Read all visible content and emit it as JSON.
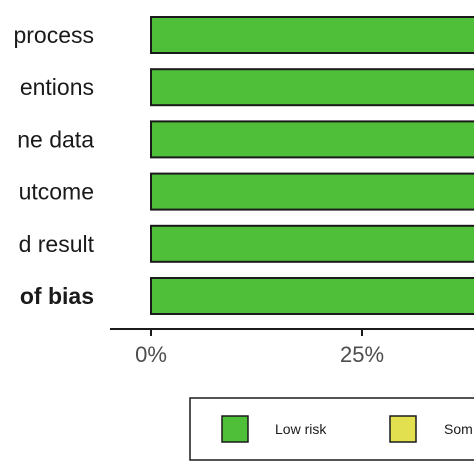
{
  "chart_data": {
    "type": "bar",
    "orientation": "horizontal",
    "stacked": true,
    "categories": [
      "process",
      "entions",
      "ne  data",
      "utcome",
      "d  result",
      "of bias"
    ],
    "bold_categories": [
      "of bias"
    ],
    "series": [
      {
        "name": "Low risk",
        "color": "#4fbf3a",
        "values": [
          100,
          100,
          100,
          100,
          100,
          100
        ]
      }
    ],
    "legend": [
      {
        "label": "Low risk",
        "color": "#4fbf3a"
      },
      {
        "label": "Som",
        "color": "#e3e050"
      }
    ],
    "x_ticks": [
      "0%",
      "25%"
    ],
    "x_tick_values": [
      0,
      25
    ],
    "xlim": [
      0,
      100
    ],
    "xlabel": "",
    "ylabel": "",
    "title": "",
    "legend_position": "bottom",
    "grid": false
  }
}
